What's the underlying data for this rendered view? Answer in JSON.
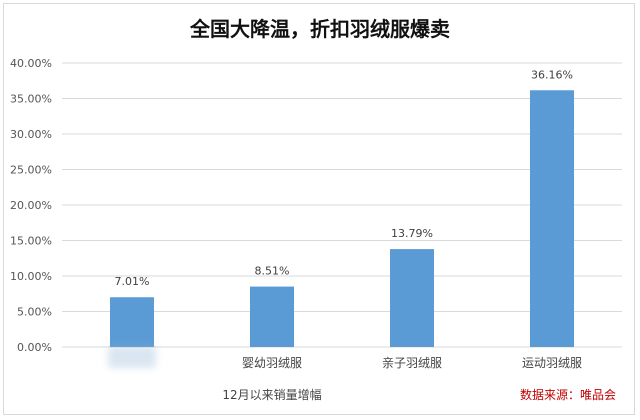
{
  "chart_data": {
    "type": "bar",
    "title": "全国大降温，折扣羽绒服爆卖",
    "categories": [
      "",
      "婴幼羽绒服",
      "亲子羽绒服",
      "运动羽绒服"
    ],
    "values": [
      7.01,
      8.51,
      13.79,
      36.16
    ],
    "data_labels": [
      "7.01%",
      "8.51%",
      "13.79%",
      "36.16%"
    ],
    "ylim": [
      0,
      40
    ],
    "yticks": [
      "0.00%",
      "5.00%",
      "10.00%",
      "15.00%",
      "20.00%",
      "25.00%",
      "30.00%",
      "35.00%",
      "40.00%"
    ],
    "xlabel": "12月以来销量增幅",
    "ylabel": "",
    "grid": true,
    "bar_color": "#5b9bd5"
  },
  "source_text": "数据来源：唯品会",
  "colors": {
    "grid": "#d9d9d9",
    "source": "#c00000"
  }
}
